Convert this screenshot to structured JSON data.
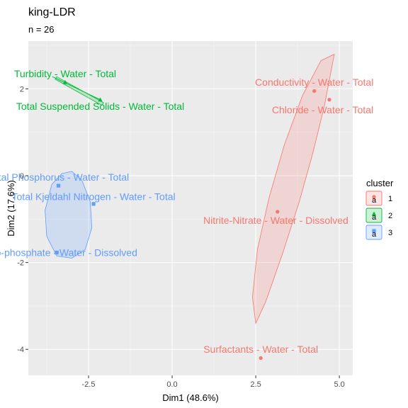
{
  "chart_data": {
    "type": "scatter",
    "title": "king-LDR",
    "subtitle": "n = 26",
    "xlabel": "Dim1 (48.6%)",
    "ylabel": "Dim2 (17.6%)",
    "xlim": [
      -4.3,
      5.4
    ],
    "ylim": [
      -4.6,
      3.1
    ],
    "xticks": [
      -2.5,
      0.0,
      2.5,
      5.0
    ],
    "xtick_labels": [
      "-2.5",
      "0.0",
      "2.5",
      "5.0"
    ],
    "yticks": [
      -4,
      -2,
      0,
      2
    ],
    "ytick_labels": [
      "-4",
      "-2",
      "0",
      "2"
    ],
    "grid": true,
    "legend": {
      "title": "cluster",
      "position": "right",
      "entries": [
        {
          "name": "1",
          "color": "#F8766D",
          "fill": "#F8766D33",
          "symbol": "circle"
        },
        {
          "name": "2",
          "color": "#00BA38",
          "fill": "#00BA3833",
          "symbol": "triangle"
        },
        {
          "name": "3",
          "color": "#619CFF",
          "fill": "#619CFF33",
          "symbol": "square"
        }
      ]
    },
    "points": [
      {
        "label": "Conductivity - Water - Total",
        "x": 4.25,
        "y": 1.95,
        "cluster": "1",
        "lx": 4.25,
        "ly": 2.15
      },
      {
        "label": "Chloride - Water - Total",
        "x": 4.7,
        "y": 1.75,
        "cluster": "1",
        "lx": 4.5,
        "ly": 1.52
      },
      {
        "label": "Nitrite-Nitrate - Water - Dissolved",
        "x": 3.15,
        "y": -0.83,
        "cluster": "1",
        "lx": 3.1,
        "ly": -1.03
      },
      {
        "label": "Surfactants - Water - Total",
        "x": 2.65,
        "y": -4.2,
        "cluster": "1",
        "lx": 2.65,
        "ly": -4.0
      },
      {
        "label": "Turbidity - Water - Total",
        "x": -3.2,
        "y": 2.15,
        "cluster": "2",
        "lx": -3.2,
        "ly": 2.35
      },
      {
        "label": "Total Suspended Solids - Water - Total",
        "x": -2.15,
        "y": 1.75,
        "cluster": "2",
        "lx": -2.15,
        "ly": 1.6
      },
      {
        "label": "Total Phosphorus - Water - Total",
        "x": -3.4,
        "y": -0.23,
        "cluster": "3",
        "lx": -3.4,
        "ly": -0.03
      },
      {
        "label": "Total Kjeldahl Nitrogen - Water - Total",
        "x": -2.35,
        "y": -0.65,
        "cluster": "3",
        "lx": -2.35,
        "ly": -0.48
      },
      {
        "label": "Ortho-phosphate - Water - Dissolved",
        "x": -3.45,
        "y": -1.77,
        "cluster": "3",
        "lx": -3.45,
        "ly": -1.77
      }
    ],
    "ellipses": [
      {
        "cluster": "1",
        "polygon": [
          [
            4.85,
            2.8
          ],
          [
            4.55,
            1.6
          ],
          [
            4.2,
            0.5
          ],
          [
            3.8,
            -0.6
          ],
          [
            3.3,
            -1.8
          ],
          [
            2.8,
            -2.9
          ],
          [
            2.5,
            -3.4
          ],
          [
            2.4,
            -2.8
          ],
          [
            2.55,
            -1.7
          ],
          [
            2.9,
            -0.5
          ],
          [
            3.35,
            0.7
          ],
          [
            3.9,
            1.85
          ],
          [
            4.45,
            2.65
          ]
        ]
      },
      {
        "cluster": "2",
        "polygon": [
          [
            -3.45,
            2.28
          ],
          [
            -2.05,
            1.68
          ],
          [
            -2.1,
            1.62
          ],
          [
            -3.5,
            2.22
          ]
        ]
      },
      {
        "cluster": "3",
        "polygon": [
          [
            -3.0,
            0.1
          ],
          [
            -2.7,
            -0.1
          ],
          [
            -2.45,
            -0.6
          ],
          [
            -2.4,
            -1.2
          ],
          [
            -2.6,
            -1.7
          ],
          [
            -3.0,
            -1.9
          ],
          [
            -3.45,
            -1.85
          ],
          [
            -3.75,
            -1.4
          ],
          [
            -3.8,
            -0.8
          ],
          [
            -3.6,
            -0.2
          ],
          [
            -3.3,
            0.05
          ]
        ]
      }
    ]
  }
}
